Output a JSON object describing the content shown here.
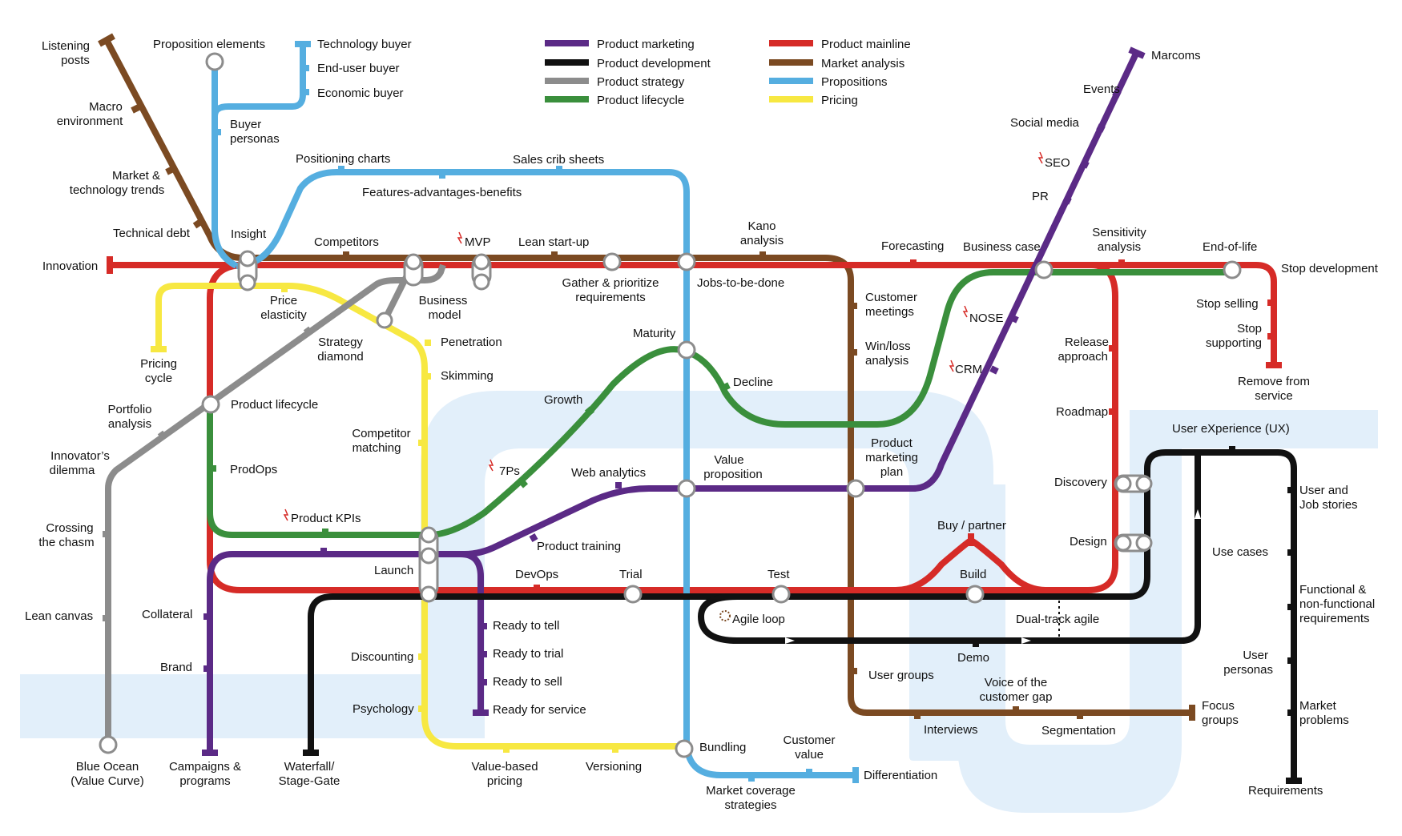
{
  "legend": [
    {
      "label": "Product marketing",
      "color": "#5b2a86"
    },
    {
      "label": "Product development",
      "color": "#111111"
    },
    {
      "label": "Product strategy",
      "color": "#8c8c8c"
    },
    {
      "label": "Product lifecycle",
      "color": "#3a8f3c"
    },
    {
      "label": "Product mainline",
      "color": "#d62b27"
    },
    {
      "label": "Market analysis",
      "color": "#7b4a22"
    },
    {
      "label": "Propositions",
      "color": "#55aee0"
    },
    {
      "label": "Pricing",
      "color": "#f7e842"
    }
  ],
  "lines": {
    "mainline": {
      "color": "#d62b27"
    },
    "market_analysis": {
      "color": "#7b4a22"
    },
    "propositions": {
      "color": "#55aee0"
    },
    "pricing": {
      "color": "#f7e842"
    },
    "marketing": {
      "color": "#5b2a86"
    },
    "development": {
      "color": "#111111"
    },
    "strategy": {
      "color": "#8c8c8c"
    },
    "lifecycle": {
      "color": "#3a8f3c"
    }
  },
  "hazard_icon": "lightning-icon",
  "loop_icon": "cycle-icon",
  "stations": {
    "listening_posts": [
      "Listening",
      "posts"
    ],
    "macro_environment": [
      "Macro",
      "environment"
    ],
    "market_tech_trends": [
      "Market &",
      "technology trends"
    ],
    "technical_debt": "Technical debt",
    "innovation": "Innovation",
    "insight": "Insight",
    "proposition_elements": "Proposition elements",
    "technology_buyer": "Technology buyer",
    "end_user_buyer": "End-user buyer",
    "economic_buyer": "Economic buyer",
    "buyer_personas": [
      "Buyer",
      "personas"
    ],
    "positioning_charts": "Positioning charts",
    "sales_crib_sheets": "Sales crib sheets",
    "features_advantages_benefits": "Features-advantages-benefits",
    "competitors": "Competitors",
    "mvp": "MVP",
    "lean_startup": "Lean start-up",
    "kano_analysis": [
      "Kano",
      "analysis"
    ],
    "forecasting": "Forecasting",
    "business_case": "Business case",
    "sensitivity_analysis": [
      "Sensitivity",
      "analysis"
    ],
    "end_of_life": "End-of-life",
    "stop_development": "Stop development",
    "stop_selling": "Stop selling",
    "stop_supporting": [
      "Stop",
      "supporting"
    ],
    "remove_from_service": [
      "Remove from",
      "service"
    ],
    "price_elasticity": [
      "Price",
      "elasticity"
    ],
    "business_model": [
      "Business",
      "model"
    ],
    "gather_prioritize": [
      "Gather & prioritize",
      "requirements"
    ],
    "jobs_to_be_done": "Jobs-to-be-done",
    "customer_meetings": [
      "Customer",
      "meetings"
    ],
    "win_loss_analysis": [
      "Win/loss",
      "analysis"
    ],
    "nose": "NOSE",
    "crm": "CRM",
    "release_approach": [
      "Release",
      "approach"
    ],
    "roadmap": "Roadmap",
    "pricing_cycle": [
      "Pricing",
      "cycle"
    ],
    "strategy_diamond": [
      "Strategy",
      "diamond"
    ],
    "penetration": "Penetration",
    "skimming": "Skimming",
    "maturity": "Maturity",
    "decline": "Decline",
    "growth": "Growth",
    "portfolio_analysis": [
      "Portfolio",
      "analysis"
    ],
    "product_lifecycle": "Product lifecycle",
    "innovators_dilemma": [
      "Innovator’s",
      "dilemma"
    ],
    "prodops": "ProdOps",
    "competitor_matching": [
      "Competitor",
      "matching"
    ],
    "seven_ps": "7Ps",
    "web_analytics": "Web analytics",
    "value_proposition": [
      "Value",
      "proposition"
    ],
    "product_marketing_plan": [
      "Product",
      "marketing",
      "plan"
    ],
    "discovery": "Discovery",
    "design": "Design",
    "user_experience": "User eXperience (UX)",
    "user_job_stories": [
      "User and",
      "Job stories"
    ],
    "use_cases": "Use cases",
    "functional_requirements": [
      "Functional &",
      "non-functional",
      "requirements"
    ],
    "user_personas": [
      "User",
      "personas"
    ],
    "market_problems": [
      "Market",
      "problems"
    ],
    "requirements": "Requirements",
    "crossing_chasm": [
      "Crossing",
      "the chasm"
    ],
    "product_kpis": "Product KPIs",
    "product_training": "Product training",
    "launch": "Launch",
    "devops": "DevOps",
    "trial": "Trial",
    "test": "Test",
    "buy_partner": "Buy / partner",
    "build": "Build",
    "lean_canvas": "Lean canvas",
    "collateral": "Collateral",
    "agile_loop": "Agile loop",
    "dual_track_agile": "Dual-track agile",
    "demo": "Demo",
    "ready_to_tell": "Ready to tell",
    "ready_to_trial": "Ready to trial",
    "ready_to_sell": "Ready to sell",
    "ready_for_service": "Ready for service",
    "discounting": "Discounting",
    "brand": "Brand",
    "psychology": "Psychology",
    "user_groups": "User groups",
    "voice_customer_gap": [
      "Voice of the",
      "customer gap"
    ],
    "focus_groups": [
      "Focus",
      "groups"
    ],
    "interviews": "Interviews",
    "segmentation": "Segmentation",
    "bundling": "Bundling",
    "customer_value": [
      "Customer",
      "value"
    ],
    "differentiation": "Differentiation",
    "blue_ocean": [
      "Blue Ocean",
      "(Value Curve)"
    ],
    "campaigns_programs": [
      "Campaigns &",
      "programs"
    ],
    "waterfall": [
      "Waterfall/",
      "Stage-Gate"
    ],
    "value_based_pricing": [
      "Value-based",
      "pricing"
    ],
    "versioning": "Versioning",
    "market_coverage": [
      "Market coverage",
      "strategies"
    ],
    "marcoms": "Marcoms",
    "events": "Events",
    "social_media": "Social media",
    "seo": "SEO",
    "pr": "PR"
  }
}
